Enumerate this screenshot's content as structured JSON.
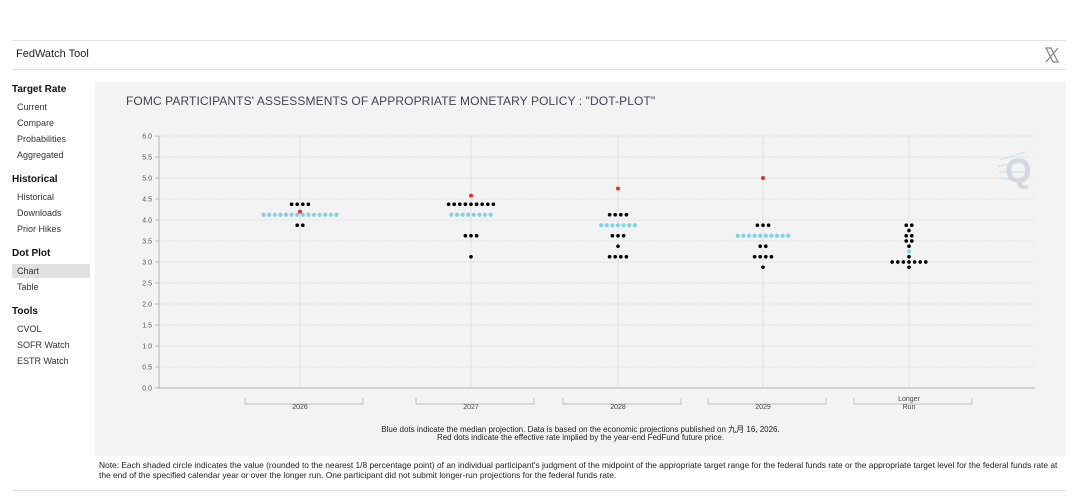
{
  "app": {
    "title": "FedWatch Tool"
  },
  "sidebar": {
    "sections": [
      {
        "heading": "Target Rate",
        "items": [
          "Current",
          "Compare",
          "Probabilities",
          "Aggregated"
        ]
      },
      {
        "heading": "Historical",
        "items": [
          "Historical",
          "Downloads",
          "Prior Hikes"
        ]
      },
      {
        "heading": "Dot Plot",
        "items": [
          "Chart",
          "Table"
        ]
      },
      {
        "heading": "Tools",
        "items": [
          "CVOL",
          "SOFR Watch",
          "ESTR Watch"
        ]
      }
    ],
    "active_item": "Chart"
  },
  "chart": {
    "caption_line1": "Blue dots indicate the median projection. Data is based on the economic projections published on 九月 16, 2026.",
    "caption_line2": "Red dots indicate the effective rate implied by the year-end FedFund future price."
  },
  "chart_data": {
    "type": "scatter",
    "title": "FOMC PARTICIPANTS' ASSESSMENTS OF APPROPRIATE MONETARY POLICY : \"DOT-PLOT\"",
    "categories": [
      "2026",
      "2027",
      "2028",
      "2029",
      "Longer Run"
    ],
    "y_ticks": [
      "0.0",
      "0.5",
      "1.0",
      "1.5",
      "2.0",
      "2.5",
      "3.0",
      "3.5",
      "4.0",
      "4.5",
      "5.0",
      "5.5",
      "6.0"
    ],
    "ylim": [
      0,
      6
    ],
    "grid": true,
    "colors": {
      "participant": "#000000",
      "median": "#7fd3e8",
      "implied": "#e53030",
      "grid": "#cfcfcf"
    },
    "participant_dots": [
      {
        "category": "2026",
        "levels": [
          {
            "y": 4.375,
            "count": 4
          },
          {
            "y": 3.875,
            "count": 2
          }
        ]
      },
      {
        "category": "2027",
        "levels": [
          {
            "y": 4.375,
            "count": 9
          },
          {
            "y": 3.625,
            "count": 3
          },
          {
            "y": 3.125,
            "count": 1
          }
        ]
      },
      {
        "category": "2028",
        "levels": [
          {
            "y": 4.125,
            "count": 4
          },
          {
            "y": 3.625,
            "count": 3
          },
          {
            "y": 3.375,
            "count": 1
          },
          {
            "y": 3.125,
            "count": 4
          }
        ]
      },
      {
        "category": "2029",
        "levels": [
          {
            "y": 3.875,
            "count": 3
          },
          {
            "y": 3.375,
            "count": 2
          },
          {
            "y": 3.125,
            "count": 4
          },
          {
            "y": 2.875,
            "count": 1
          }
        ]
      },
      {
        "category": "Longer Run",
        "levels": [
          {
            "y": 3.875,
            "count": 2
          },
          {
            "y": 3.75,
            "count": 1
          },
          {
            "y": 3.625,
            "count": 2
          },
          {
            "y": 3.5,
            "count": 2
          },
          {
            "y": 3.375,
            "count": 1
          },
          {
            "y": 3.125,
            "count": 1
          },
          {
            "y": 3.0,
            "count": 7
          },
          {
            "y": 2.875,
            "count": 1
          }
        ]
      }
    ],
    "median_dots": [
      {
        "category": "2026",
        "y": 4.125,
        "count": 14
      },
      {
        "category": "2027",
        "y": 4.125,
        "count": 8
      },
      {
        "category": "2028",
        "y": 3.875,
        "count": 7
      },
      {
        "category": "2029",
        "y": 3.625,
        "count": 10
      },
      {
        "category": "Longer Run",
        "y": 3.25,
        "count": 1
      }
    ],
    "implied_dots": [
      {
        "category": "2026",
        "y": 4.2
      },
      {
        "category": "2027",
        "y": 4.58
      },
      {
        "category": "2028",
        "y": 4.75
      },
      {
        "category": "2029",
        "y": 5.0
      }
    ]
  },
  "note": "Note: Each shaded circle indicates the value (rounded to the nearest 1/8 percentage point) of an individual participant's judgment of the midpoint of the appropriate target range for the federal funds rate or the appropriate target level for the federal funds rate at the end of the specified calendar year or over the longer run. One participant did not submit longer-run projections for the federal funds rate."
}
